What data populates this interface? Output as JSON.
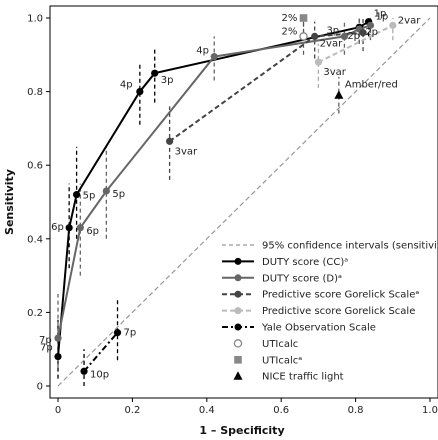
{
  "chart_data": {
    "type": "line",
    "xlabel": "1 – Specificity",
    "ylabel": "Sensitivity",
    "xlim": [
      0,
      1
    ],
    "ylim": [
      0,
      1
    ],
    "x_ticks": [
      0,
      0.2,
      0.4,
      0.6,
      0.8,
      1.0
    ],
    "x_tick_labels": [
      "0",
      "0.2",
      "0.4",
      "0.6",
      "0.8",
      "1.0"
    ],
    "y_ticks": [
      0,
      0.2,
      0.4,
      0.6,
      0.8,
      1.0
    ],
    "y_tick_labels": [
      "0",
      "0.2",
      "0.4",
      "0.6",
      "0.8",
      "1.0"
    ],
    "grid": false,
    "legend_position": "bottom-right",
    "reference_line": {
      "x": [
        0,
        1
      ],
      "y": [
        0,
        1
      ],
      "color": "#999999",
      "style": "dashed"
    },
    "series": [
      {
        "name": "DUTY score (CC)ᵃ",
        "color": "#000000",
        "line": "solid",
        "marker": "circle",
        "points": [
          {
            "x": 0.0,
            "y": 0.08,
            "label": "7p",
            "ci": [
              0.02,
              0.18
            ]
          },
          {
            "x": 0.03,
            "y": 0.43,
            "label": "6p",
            "ci": [
              0.32,
              0.55
            ]
          },
          {
            "x": 0.05,
            "y": 0.52,
            "label": "5p",
            "ci": [
              0.4,
              0.65
            ]
          },
          {
            "x": 0.22,
            "y": 0.8,
            "label": "4p",
            "ci": [
              0.71,
              0.88
            ]
          },
          {
            "x": 0.26,
            "y": 0.85,
            "label": "3p",
            "ci": [
              0.77,
              0.92
            ]
          },
          {
            "x": 0.81,
            "y": 0.975,
            "label": "2p",
            "ci": [
              0.93,
              1.0
            ]
          },
          {
            "x": 0.835,
            "y": 0.99,
            "label": "1p",
            "ci": [
              0.95,
              1.0
            ]
          }
        ]
      },
      {
        "name": "DUTY score (D)ᵃ",
        "color": "#666666",
        "line": "solid",
        "marker": "circle",
        "points": [
          {
            "x": 0.0,
            "y": 0.13,
            "label": "7p",
            "ci": [
              0.05,
              0.25
            ]
          },
          {
            "x": 0.06,
            "y": 0.43,
            "label": "6p",
            "ci": [
              0.3,
              0.55
            ]
          },
          {
            "x": 0.13,
            "y": 0.53,
            "label": "5p",
            "ci": [
              0.4,
              0.65
            ]
          },
          {
            "x": 0.42,
            "y": 0.895,
            "label": "4p",
            "ci": [
              0.83,
              0.95
            ]
          },
          {
            "x": 0.77,
            "y": 0.95,
            "label": "3p",
            "ci": [
              0.9,
              0.99
            ]
          },
          {
            "x": 0.81,
            "y": 0.97,
            "label": "2p",
            "ci": [
              0.93,
              1.0
            ]
          },
          {
            "x": 0.84,
            "y": 0.98,
            "label": "1p",
            "ci": [
              0.94,
              1.0
            ]
          }
        ]
      },
      {
        "name": "Predictive score Gorelick Scaleᵃ",
        "color": "#444444",
        "line": "dashed",
        "marker": "circle",
        "points": [
          {
            "x": 0.3,
            "y": 0.665,
            "label": "3var",
            "ci": [
              0.56,
              0.76
            ]
          },
          {
            "x": 0.69,
            "y": 0.95,
            "label": "2var",
            "ci": [
              0.89,
              0.99
            ]
          },
          {
            "x": 0.82,
            "y": 0.96,
            "label": "",
            "ci": [
              0.91,
              1.0
            ]
          }
        ]
      },
      {
        "name": "Predictive score Gorelick Scale",
        "color": "#bbbbbb",
        "line": "dashed",
        "marker": "circle",
        "points": [
          {
            "x": 0.7,
            "y": 0.88,
            "label": "3var",
            "ci": [
              0.81,
              0.93
            ]
          },
          {
            "x": 0.9,
            "y": 0.98,
            "label": "2var",
            "ci": [
              0.94,
              1.0
            ]
          }
        ]
      },
      {
        "name": "Yale Observation Scale",
        "color": "#000000",
        "line": "dash-dot",
        "marker": "circle",
        "points": [
          {
            "x": 0.07,
            "y": 0.04,
            "label": "10p",
            "ci": [
              0.0,
              0.1
            ]
          },
          {
            "x": 0.16,
            "y": 0.145,
            "label": "7p",
            "ci": [
              0.07,
              0.24
            ]
          }
        ]
      }
    ],
    "single_points": [
      {
        "name": "UTIcalc",
        "marker": "open-circle",
        "color": "#888888",
        "x": 0.66,
        "y": 0.95,
        "label": "2%",
        "ci": [
          0.9,
          0.99
        ]
      },
      {
        "name": "UTIcalcᵃ",
        "marker": "square",
        "color": "#888888",
        "x": 0.66,
        "y": 1.0,
        "label": "2%",
        "ci": [
          0.96,
          1.0
        ]
      },
      {
        "name": "NICE traffic light",
        "marker": "triangle",
        "color": "#000000",
        "x": 0.755,
        "y": 0.79,
        "label": "Amber/red",
        "ci": [
          0.74,
          0.84
        ]
      }
    ],
    "legend": [
      {
        "label": "95% confidence intervals (sensitivity)",
        "style": "ci",
        "color": "#999999"
      },
      {
        "label": "DUTY score (CC)ᵃ",
        "style": "line-solid",
        "color": "#000000"
      },
      {
        "label": "DUTY score (D)ᵃ",
        "style": "line-solid",
        "color": "#666666"
      },
      {
        "label": "Predictive score Gorelick Scaleᵃ",
        "style": "line-dashed",
        "color": "#444444"
      },
      {
        "label": "Predictive score Gorelick Scale",
        "style": "line-dashed",
        "color": "#bbbbbb"
      },
      {
        "label": "Yale Observation Scale",
        "style": "line-dashdot",
        "color": "#000000"
      },
      {
        "label": "UTIcalc",
        "style": "open-circle",
        "color": "#888888"
      },
      {
        "label": "UTIcalcᵃ",
        "style": "square",
        "color": "#888888"
      },
      {
        "label": "NICE traffic light",
        "style": "triangle",
        "color": "#000000"
      }
    ]
  }
}
